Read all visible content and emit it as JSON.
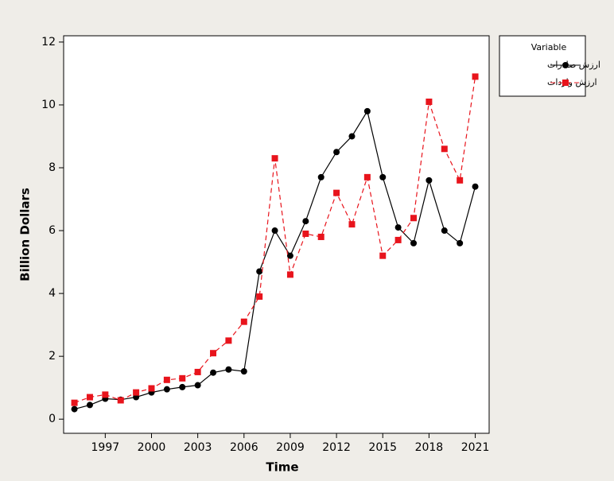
{
  "chart_data": {
    "type": "line",
    "x_label": "Time",
    "y_label": "Billion Dollars",
    "legend_title": "Variable",
    "legend_position": "right",
    "x": [
      1995,
      1996,
      1997,
      1998,
      1999,
      2000,
      2001,
      2002,
      2003,
      2004,
      2005,
      2006,
      2007,
      2008,
      2009,
      2010,
      2011,
      2012,
      2013,
      2014,
      2015,
      2016,
      2017,
      2018,
      2019,
      2020,
      2021
    ],
    "series": [
      {
        "name": "ارزش صادرات",
        "color": "#000000",
        "marker": "circle",
        "dash": false,
        "values": [
          0.32,
          0.45,
          0.65,
          0.62,
          0.7,
          0.85,
          0.95,
          1.02,
          1.08,
          1.48,
          1.58,
          1.52,
          4.7,
          6.0,
          5.2,
          6.3,
          7.7,
          8.5,
          9.0,
          9.8,
          7.7,
          6.1,
          5.6,
          7.6,
          6.0,
          5.6,
          7.4
        ]
      },
      {
        "name": "ارزش واردات",
        "color": "#e8141c",
        "marker": "square",
        "dash": true,
        "values": [
          0.52,
          0.7,
          0.78,
          0.6,
          0.85,
          0.98,
          1.25,
          1.3,
          1.5,
          2.1,
          2.5,
          3.1,
          3.9,
          8.3,
          4.6,
          5.9,
          5.8,
          7.2,
          6.2,
          7.7,
          5.2,
          5.7,
          6.4,
          10.1,
          8.6,
          7.6,
          10.9
        ]
      }
    ],
    "xlim": [
      1994.3,
      2021.9
    ],
    "xticks": [
      1997,
      2000,
      2003,
      2006,
      2009,
      2012,
      2015,
      2018,
      2021
    ],
    "ylim": [
      -0.45,
      12.2
    ],
    "yticks": [
      0,
      2,
      4,
      6,
      8,
      10,
      12
    ]
  }
}
